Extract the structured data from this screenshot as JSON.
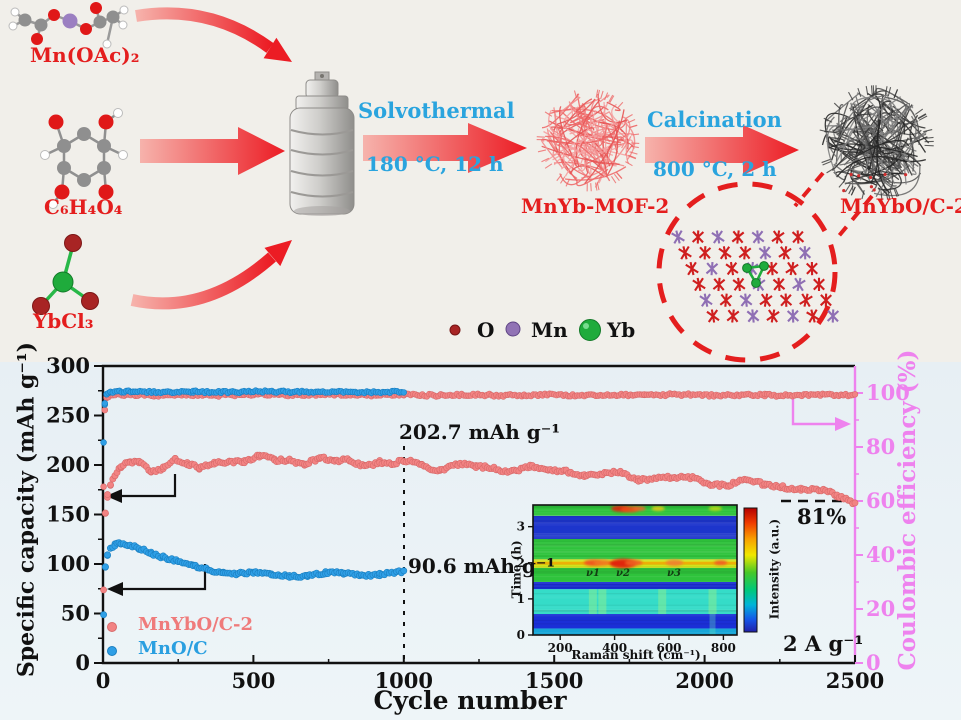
{
  "scheme": {
    "reactants": [
      {
        "label": "Mn(OAc)₂"
      },
      {
        "label": "C₆H₄O₄"
      },
      {
        "label": "YbCl₃"
      }
    ],
    "step1": {
      "name": "Solvothermal",
      "condition": "180 °C, 12 h"
    },
    "step2": {
      "name": "Calcination",
      "condition": "800 °C, 2 h"
    },
    "intermediate_label": "MnYb-MOF-2",
    "product_label": "MnYbO/C-2",
    "atom_legend": [
      {
        "symbol": "O",
        "color": "#a82424"
      },
      {
        "symbol": "Mn",
        "color": "#9173b5"
      },
      {
        "symbol": "Yb",
        "color": "#1fab3c"
      }
    ],
    "arrow_color": "#ec1c24",
    "label_color": "#e41e1e",
    "step_text_color": "#2aa4de"
  },
  "chart_data": [
    {
      "type": "scatter",
      "xlabel": "Cycle number",
      "ylabel_left": "Specific capacity (mAh g⁻¹)",
      "ylabel_right": "Coulombic efficiency (%)",
      "xlim": [
        0,
        2500
      ],
      "x_ticks": [
        0,
        500,
        1000,
        1500,
        2000,
        2500
      ],
      "ylim_left": [
        0,
        300
      ],
      "y_ticks_left": [
        0,
        50,
        100,
        150,
        200,
        250,
        300
      ],
      "ylim_right": [
        0,
        110
      ],
      "y_ticks_right": [
        0,
        20,
        40,
        60,
        80,
        100
      ],
      "right_axis_color": "#ee82ee",
      "rate_label": "2 A g⁻¹",
      "annotations": {
        "cap_pink": "202.7 mAh g⁻¹",
        "cap_blue": "90.6 mAh g⁻¹",
        "retention": "81%"
      },
      "legend": [
        {
          "label": "MnYbO/C-2",
          "color": "#f28383"
        },
        {
          "label": "MnO/C",
          "color": "#2f9fe6"
        }
      ],
      "series": [
        {
          "name": "MnYbO/C-2 specific capacity",
          "axis": "left",
          "color": "#f28383",
          "x": [
            2,
            8,
            15,
            25,
            40,
            60,
            90,
            120,
            160,
            200,
            240,
            280,
            320,
            370,
            420,
            470,
            520,
            570,
            620,
            670,
            720,
            770,
            820,
            870,
            920,
            960,
            1000,
            1060,
            1120,
            1180,
            1240,
            1300,
            1360,
            1420,
            1480,
            1540,
            1600,
            1660,
            1720,
            1780,
            1840,
            1900,
            1960,
            2020,
            2080,
            2140,
            2200,
            2260,
            2320,
            2380,
            2440,
            2500
          ],
          "y": [
            75,
            152,
            168,
            178,
            188,
            196,
            201,
            203,
            196,
            199,
            205,
            199,
            195,
            203,
            206,
            203,
            207,
            204,
            207,
            203,
            206,
            202,
            205,
            201,
            204,
            199,
            202.7,
            200,
            197,
            200,
            196,
            198,
            195,
            197,
            193,
            195,
            191,
            189,
            191,
            187,
            188,
            185,
            186,
            183,
            181,
            183,
            179,
            180,
            176,
            173,
            169,
            164
          ]
        },
        {
          "name": "MnO/C specific capacity",
          "axis": "left",
          "color": "#2f9fe6",
          "x": [
            2,
            8,
            15,
            25,
            40,
            60,
            90,
            120,
            160,
            200,
            250,
            300,
            350,
            400,
            450,
            500,
            560,
            620,
            680,
            740,
            800,
            860,
            920,
            1000
          ],
          "y": [
            50,
            96,
            108,
            114,
            118,
            120,
            118,
            116,
            112,
            108,
            102,
            97,
            94,
            92,
            91,
            90,
            89,
            89,
            89,
            90,
            90,
            90,
            90,
            90.6
          ]
        },
        {
          "name": "MnYbO/C-2 coulombic efficiency",
          "axis": "right",
          "color": "#f28383",
          "x": [
            2,
            6,
            12,
            25,
            100,
            300,
            600,
            1000,
            1400,
            1800,
            2200,
            2500
          ],
          "y": [
            65,
            94,
            98.5,
            99.2,
            99.3,
            99.2,
            99.4,
            99.3,
            99.2,
            99.3,
            99.2,
            99.3
          ]
        },
        {
          "name": "MnO/C coulombic efficiency",
          "axis": "right",
          "color": "#2f9fe6",
          "x": [
            2,
            6,
            12,
            25,
            100,
            300,
            600,
            1000
          ],
          "y": [
            82,
            96,
            99.8,
            100.4,
            100.5,
            100.4,
            100.5,
            100.4
          ]
        }
      ]
    },
    {
      "type": "heatmap",
      "xlabel": "Raman shift (cm⁻¹)",
      "ylabel": "Time (h)",
      "colorbar_label": "Intensity (a.u.)",
      "xlim": [
        100,
        850
      ],
      "x_ticks": [
        200,
        400,
        600,
        800
      ],
      "ylim": [
        0,
        3.6
      ],
      "y_ticks": [
        0,
        1,
        2,
        3
      ],
      "peak_labels": [
        {
          "text": "ν1",
          "x": 320,
          "t": 1.62
        },
        {
          "text": "ν2",
          "x": 430,
          "t": 1.62
        },
        {
          "text": "ν3",
          "x": 620,
          "t": 1.62
        }
      ],
      "bands": [
        {
          "t0": 0.0,
          "t1": 0.18,
          "color": "#18a6d8"
        },
        {
          "t0": 0.18,
          "t1": 0.58,
          "color": "#1b2fd6"
        },
        {
          "t0": 0.58,
          "t1": 1.27,
          "color": "#35dcc8"
        },
        {
          "t0": 1.27,
          "t1": 1.47,
          "color": "#1b2fd6"
        },
        {
          "t0": 1.47,
          "t1": 1.86,
          "color": "#2fc33c"
        },
        {
          "t0": 1.86,
          "t1": 2.1,
          "color": "#d4e81c"
        },
        {
          "t0": 2.1,
          "t1": 2.66,
          "color": "#2fc33c"
        },
        {
          "t0": 2.66,
          "t1": 3.3,
          "color": "#1d35cc"
        },
        {
          "t0": 3.3,
          "t1": 3.6,
          "color": "#2fc33c"
        }
      ],
      "hot_spots": [
        {
          "x": 320,
          "t": 2.0,
          "color": "#f05020",
          "r": 4
        },
        {
          "x": 355,
          "t": 2.0,
          "color": "#f07820",
          "r": 4
        },
        {
          "x": 430,
          "t": 1.98,
          "color": "#e01810",
          "r": 6
        },
        {
          "x": 470,
          "t": 2.0,
          "color": "#f06020",
          "r": 4
        },
        {
          "x": 620,
          "t": 2.0,
          "color": "#f08030",
          "r": 4
        },
        {
          "x": 790,
          "t": 2.0,
          "color": "#f05828",
          "r": 3
        },
        {
          "x": 420,
          "t": 3.5,
          "color": "#e02010",
          "r": 4
        },
        {
          "x": 455,
          "t": 3.48,
          "color": "#f04818",
          "r": 4
        },
        {
          "x": 490,
          "t": 3.5,
          "color": "#f06428",
          "r": 3
        },
        {
          "x": 560,
          "t": 3.5,
          "color": "#e8c818",
          "r": 3
        },
        {
          "x": 770,
          "t": 3.5,
          "color": "#bcd818",
          "r": 3
        }
      ],
      "streaks": [
        {
          "x": 320
        },
        {
          "x": 355
        },
        {
          "x": 575
        },
        {
          "x": 760
        }
      ]
    }
  ]
}
